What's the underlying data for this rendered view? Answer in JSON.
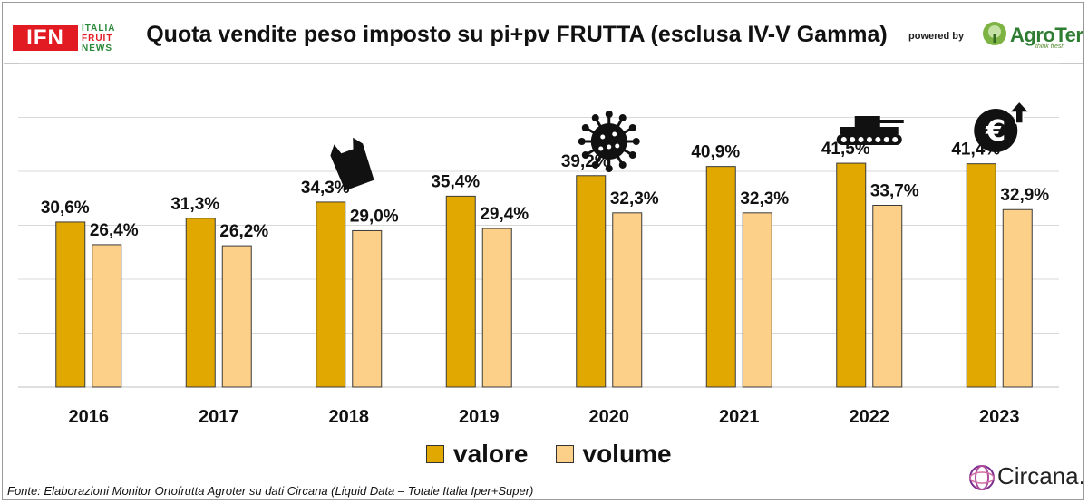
{
  "header": {
    "ifn_logo": {
      "box_text": "IFN",
      "line1": "ITALIA",
      "line2": "FRUIT",
      "line3": "NEWS"
    },
    "powered_by": "powered by",
    "agroter": {
      "name": "AgroTer",
      "tagline": "think fresh"
    }
  },
  "colors": {
    "valore": "#e0a800",
    "volume": "#fdd08a",
    "gridline": "#d9d9d9"
  },
  "icons": [
    "plastic-bag-icon",
    "virus-icon",
    "tank-icon",
    "euro-up-icon"
  ],
  "chart_data": {
    "type": "bar",
    "title": "Quota vendite peso imposto su pi+pv FRUTTA (esclusa IV-V Gamma)",
    "categories": [
      "2016",
      "2017",
      "2018",
      "2019",
      "2020",
      "2021",
      "2022",
      "2023"
    ],
    "series": [
      {
        "name": "valore",
        "values": [
          30.6,
          31.3,
          34.3,
          35.4,
          39.2,
          40.9,
          41.5,
          41.4
        ],
        "labels": [
          "30,6%",
          "31,3%",
          "34,3%",
          "35,4%",
          "39,2%",
          "40,9%",
          "41,5%",
          "41,4%"
        ]
      },
      {
        "name": "volume",
        "values": [
          26.4,
          26.2,
          29.0,
          29.4,
          32.3,
          32.3,
          33.7,
          32.9
        ],
        "labels": [
          "26,4%",
          "26,2%",
          "29,0%",
          "29,4%",
          "32,3%",
          "32,3%",
          "33,7%",
          "32,9%"
        ]
      }
    ],
    "ylim": [
      0,
      60
    ],
    "grid": true,
    "legend": "bottom-center"
  },
  "footer": {
    "source": "Fonte: Elaborazioni Monitor Ortofrutta Agroter su dati  Circana (Liquid Data – Totale Italia Iper+Super)",
    "circana": "Circana."
  }
}
